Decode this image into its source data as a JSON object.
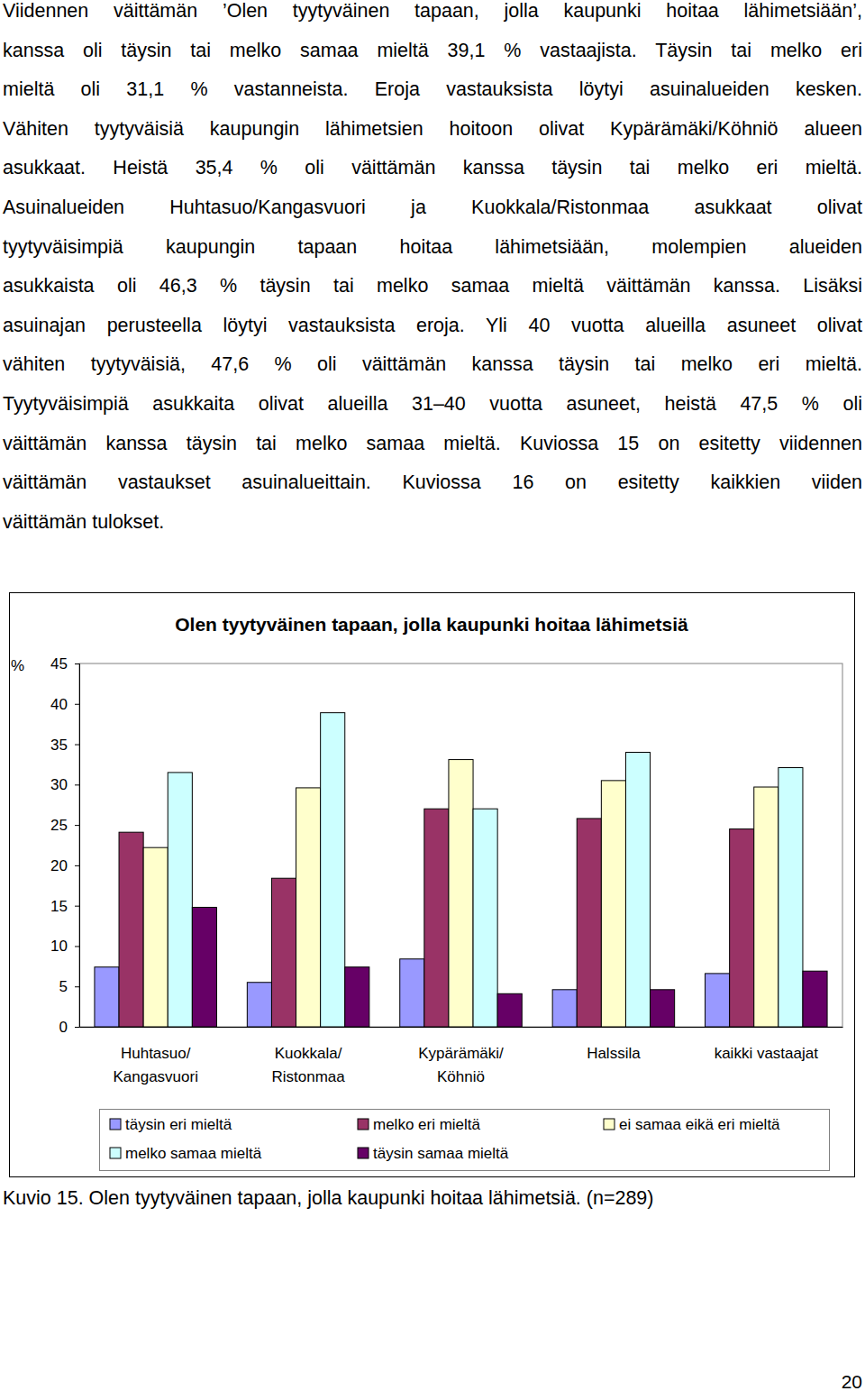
{
  "document": {
    "paragraph_lines": [
      "Viidennen väittämän ’Olen tyytyväinen tapaan, jolla kaupunki hoitaa lähimetsiään’,",
      "kanssa oli täysin tai melko samaa mieltä 39,1 % vastaajista. Täysin tai melko eri",
      "mieltä oli 31,1 % vastanneista. Eroja vastauksista löytyi asuinalueiden kesken.",
      "Vähiten tyytyväisiä kaupungin lähimetsien hoitoon olivat Kypärämäki/Köhniö alueen",
      "asukkaat. Heistä 35,4 % oli väittämän kanssa täysin tai melko eri mieltä.",
      "Asuinalueiden Huhtasuo/Kangasvuori ja Kuokkala/Ristonmaa asukkaat olivat",
      "tyytyväisimpiä kaupungin tapaan hoitaa lähimetsiään, molempien alueiden",
      "asukkaista oli 46,3 % täysin tai melko samaa mieltä väittämän kanssa. Lisäksi",
      "asuinajan perusteella löytyi vastauksista eroja. Yli 40 vuotta alueilla asuneet olivat",
      "vähiten tyytyväisiä, 47,6 % oli väittämän kanssa täysin tai melko eri mieltä.",
      "Tyytyväisimpiä asukkaita olivat alueilla 31–40 vuotta asuneet, heistä 47,5 % oli",
      "väittämän kanssa täysin tai melko samaa mieltä. Kuviossa 15 on esitetty viidennen",
      "väittämän vastaukset asuinalueittain. Kuviossa 16 on esitetty kaikkien viiden",
      "väittämän tulokset."
    ],
    "caption": "Kuvio 15. Olen tyytyväinen tapaan, jolla kaupunki hoitaa lähimetsiä. (n=289)",
    "page_number": 20
  },
  "chart_data": {
    "type": "bar",
    "title": "Olen tyytyväinen tapaan, jolla kaupunki hoitaa lähimetsiä",
    "y_label": "%",
    "categories": [
      "Huhtasuo/\nKangasvuori",
      "Kuokkala/\nRistonmaa",
      "Kypärämäki/\nKöhniö",
      "Halssila",
      "kaikki vastaajat"
    ],
    "series": [
      {
        "name": "täysin eri mieltä",
        "color": "#9999ff",
        "values": [
          7.4,
          5.5,
          8.4,
          4.6,
          6.6
        ]
      },
      {
        "name": "melko eri mieltä",
        "color": "#993366",
        "values": [
          24.1,
          18.4,
          27.0,
          25.8,
          24.5
        ]
      },
      {
        "name": "ei samaa eikä eri mieltä",
        "color": "#ffffcc",
        "values": [
          22.2,
          29.6,
          33.1,
          30.5,
          29.7
        ]
      },
      {
        "name": "melko samaa mieltä",
        "color": "#ccffff",
        "values": [
          31.5,
          38.9,
          27.0,
          34.0,
          32.1
        ]
      },
      {
        "name": "täysin samaa mieltä",
        "color": "#660066",
        "values": [
          14.8,
          7.4,
          4.1,
          4.6,
          6.9
        ]
      }
    ],
    "ylim": [
      0,
      45
    ],
    "yticks": [
      0,
      5,
      10,
      15,
      20,
      25,
      30,
      35,
      40,
      45
    ],
    "grid": false,
    "legend": "bottom",
    "data_labels": false
  }
}
